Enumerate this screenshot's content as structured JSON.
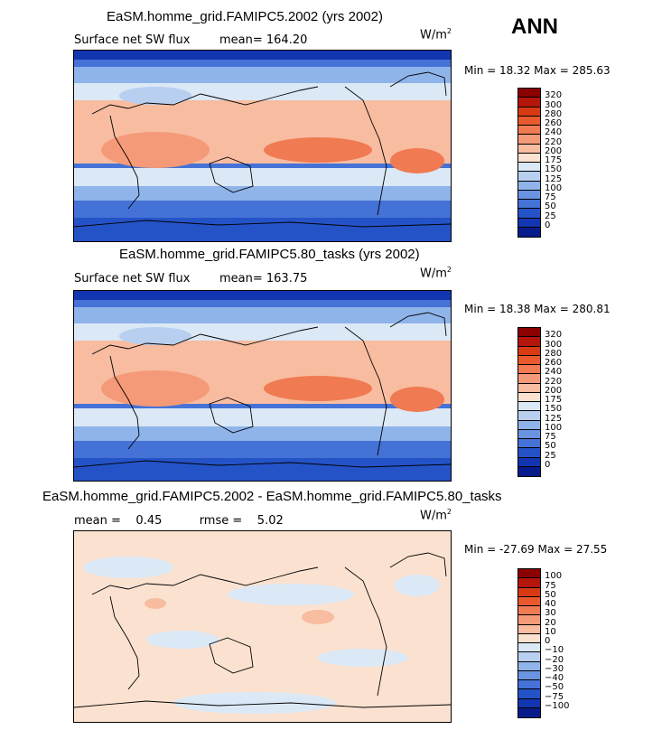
{
  "season": "ANN",
  "panels": [
    {
      "title": "EaSM.homme_grid.FAMIPC5.2002 (yrs 2002)",
      "field": "Surface net SW flux",
      "stat_text": "mean= 164.20",
      "units": "W/m",
      "units_sup": "2",
      "min_max": "Min =  18.32 Max = 285.63",
      "levels": [
        "320",
        "300",
        "280",
        "260",
        "240",
        "220",
        "200",
        "175",
        "150",
        "125",
        "100",
        "75",
        "50",
        "25",
        "0"
      ],
      "colors": [
        "#8b0000",
        "#b4160c",
        "#d83a14",
        "#e85a2e",
        "#f07a52",
        "#f59a78",
        "#f8bca0",
        "#fbe2d0",
        "#dbe8f6",
        "#b8cff0",
        "#8fb4ea",
        "#6a94e2",
        "#4572d6",
        "#2453c8",
        "#1236b0",
        "#071c8a"
      ]
    },
    {
      "title": "EaSM.homme_grid.FAMIPC5.80_tasks (yrs 2002)",
      "field": "Surface net SW flux",
      "stat_text": "mean= 163.75",
      "units": "W/m",
      "units_sup": "2",
      "min_max": "Min =  18.38 Max = 280.81",
      "levels": [
        "320",
        "300",
        "280",
        "260",
        "240",
        "220",
        "200",
        "175",
        "150",
        "125",
        "100",
        "75",
        "50",
        "25",
        "0"
      ],
      "colors": [
        "#8b0000",
        "#b4160c",
        "#d83a14",
        "#e85a2e",
        "#f07a52",
        "#f59a78",
        "#f8bca0",
        "#fbe2d0",
        "#dbe8f6",
        "#b8cff0",
        "#8fb4ea",
        "#6a94e2",
        "#4572d6",
        "#2453c8",
        "#1236b0",
        "#071c8a"
      ]
    },
    {
      "title": "EaSM.homme_grid.FAMIPC5.2002 - EaSM.homme_grid.FAMIPC5.80_tasks",
      "field": "",
      "stat_text": "mean =    0.45          rmse =    5.02",
      "units": "W/m",
      "units_sup": "2",
      "min_max": "Min = -27.69 Max =  27.55",
      "levels": [
        "100",
        "75",
        "50",
        "40",
        "30",
        "20",
        "10",
        "0",
        "−10",
        "−20",
        "−30",
        "−40",
        "−50",
        "−75",
        "−100"
      ],
      "colors": [
        "#8b0000",
        "#b4160c",
        "#d83a14",
        "#e85a2e",
        "#f07a52",
        "#f59a78",
        "#f8bca0",
        "#fbe2d0",
        "#dbe8f6",
        "#b8cff0",
        "#8fb4ea",
        "#6a94e2",
        "#4572d6",
        "#2453c8",
        "#1236b0",
        "#071c8a"
      ]
    }
  ]
}
